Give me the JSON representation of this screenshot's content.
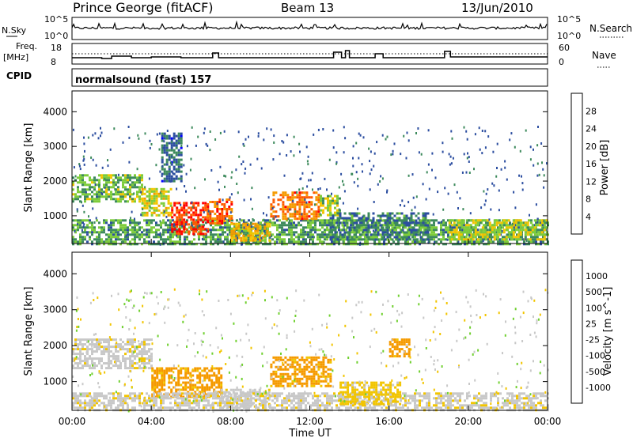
{
  "header": {
    "station": "Prince George (fitACF)",
    "beam": "Beam 13",
    "date": "13/Jun/2010"
  },
  "strip_noise": {
    "left_label": "N.Sky",
    "right_label": "N.Search",
    "left_ticks": [
      "10^5",
      "10^0"
    ],
    "right_ticks": [
      "10^5",
      "10^0"
    ]
  },
  "strip_freq": {
    "left_label_1": "Freq.",
    "left_label_2": "[MHz]",
    "right_label": "Nave",
    "left_ticks": [
      "18",
      "8"
    ],
    "right_ticks": [
      "60",
      "0"
    ]
  },
  "strip_cpid": {
    "left_label": "CPID",
    "text": "normalsound (fast) 157"
  },
  "colors": {
    "power_scale": [
      "#0000ff",
      "#2c4ea0",
      "#3d8a5c",
      "#7dcc3a",
      "#f2c500",
      "#f59a00",
      "#ff5a00",
      "#ff0000"
    ],
    "velocity_scale": [
      "#2020c0",
      "#2a7a4a",
      "#3aa04a",
      "#70d030",
      "#c8c8c8",
      "#f2c500",
      "#f59a00",
      "#ff6a00",
      "#ff0000"
    ],
    "ground_scatter": "#c8c8c8"
  },
  "chart_data": [
    {
      "type": "heatmap",
      "panel": "power",
      "ylabel": "Slant Range [km]",
      "xlabel": "",
      "x_ticks": [
        "00:00",
        "04:00",
        "08:00",
        "12:00",
        "16:00",
        "20:00",
        "00:00"
      ],
      "y_ticks": [
        "1000",
        "2000",
        "3000",
        "4000"
      ],
      "ylim": [
        200,
        4600
      ],
      "xlim_hours": [
        0,
        24
      ],
      "colorbar_label": "Power [dB]",
      "colorbar_ticks": [
        "28",
        "24",
        "20",
        "16",
        "12",
        "8",
        "4"
      ],
      "clim": [
        0,
        30
      ],
      "regions": [
        {
          "t0": 0.0,
          "t1": 24.0,
          "r0": 200,
          "r1": 900,
          "level": 10
        },
        {
          "t0": 0.0,
          "t1": 3.5,
          "r0": 1400,
          "r1": 2200,
          "level": 12
        },
        {
          "t0": 3.5,
          "t1": 5.0,
          "r0": 1000,
          "r1": 1800,
          "level": 16
        },
        {
          "t0": 5.0,
          "t1": 6.8,
          "r0": 500,
          "r1": 1400,
          "level": 28
        },
        {
          "t0": 6.8,
          "t1": 8.0,
          "r0": 800,
          "r1": 1500,
          "level": 26
        },
        {
          "t0": 8.0,
          "t1": 10.0,
          "r0": 300,
          "r1": 800,
          "level": 18
        },
        {
          "t0": 10.0,
          "t1": 12.5,
          "r0": 900,
          "r1": 1700,
          "level": 24
        },
        {
          "t0": 12.5,
          "t1": 13.5,
          "r0": 1000,
          "r1": 1600,
          "level": 14
        },
        {
          "t0": 13.0,
          "t1": 18.0,
          "r0": 300,
          "r1": 1100,
          "level": 8
        },
        {
          "t0": 19.0,
          "t1": 24.0,
          "r0": 300,
          "r1": 900,
          "level": 14
        },
        {
          "t0": 4.5,
          "t1": 5.5,
          "r0": 2000,
          "r1": 3400,
          "level": 6
        }
      ]
    },
    {
      "type": "heatmap",
      "panel": "velocity",
      "ylabel": "Slant Range [km]",
      "xlabel": "Time UT",
      "x_ticks": [
        "00:00",
        "04:00",
        "08:00",
        "12:00",
        "16:00",
        "20:00",
        "00:00"
      ],
      "y_ticks": [
        "1000",
        "2000",
        "3000",
        "4000"
      ],
      "ylim": [
        200,
        4600
      ],
      "xlim_hours": [
        0,
        24
      ],
      "colorbar_label": "Velocity [m s^-1]",
      "colorbar_ticks": [
        "1000",
        "500",
        "100",
        "25",
        "-25",
        "-100",
        "-500",
        "-1000"
      ],
      "regions": [
        {
          "t0": 0.0,
          "t1": 4.0,
          "r0": 1400,
          "r1": 2200,
          "level": "ground"
        },
        {
          "t0": 4.0,
          "t1": 7.5,
          "r0": 600,
          "r1": 1400,
          "level": -250
        },
        {
          "t0": 7.5,
          "t1": 10.0,
          "r0": 300,
          "r1": 800,
          "level": "ground"
        },
        {
          "t0": 10.0,
          "t1": 13.0,
          "r0": 900,
          "r1": 1700,
          "level": -150
        },
        {
          "t0": 0.0,
          "t1": 24.0,
          "r0": 200,
          "r1": 700,
          "level": "ground"
        },
        {
          "t0": 16.0,
          "t1": 17.0,
          "r0": 1700,
          "r1": 2200,
          "level": -400
        },
        {
          "t0": 13.5,
          "t1": 16.5,
          "r0": 400,
          "r1": 1000,
          "level": -60
        }
      ]
    }
  ]
}
